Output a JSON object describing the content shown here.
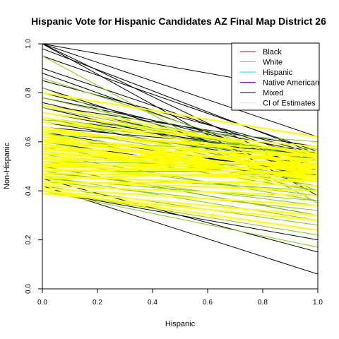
{
  "chart_data": {
    "type": "line",
    "title": "Hispanic Vote for Hispanic Candidates AZ Final Map District 26",
    "xlabel": "Hispanic",
    "ylabel": "Non-Hispanic",
    "xlim": [
      0,
      1
    ],
    "ylim": [
      0,
      1
    ],
    "x_ticks": [
      "0.0",
      "0.2",
      "0.4",
      "0.6",
      "0.8",
      "1.0"
    ],
    "y_ticks": [
      "0.0",
      "0.2",
      "0.4",
      "0.6",
      "0.8",
      "1.0"
    ],
    "grid": false,
    "legend_position": "top-right",
    "legend": [
      {
        "name": "Black",
        "color": "#cc0000"
      },
      {
        "name": "White",
        "color": "#7ccd00"
      },
      {
        "name": "Hispanic",
        "color": "#00e5e5"
      },
      {
        "name": "Native American",
        "color": "#7a00cc"
      },
      {
        "name": "Mixed",
        "color": "#000000"
      },
      {
        "name": "CI of Estimates",
        "color": "#ffff00"
      }
    ],
    "tomography_lines": {
      "Mixed": [
        [
          0.82,
          0.46
        ],
        [
          0.8,
          0.52
        ],
        [
          0.7,
          0.46
        ],
        [
          0.62,
          0.52
        ],
        [
          0.6,
          0.44
        ],
        [
          0.66,
          0.56
        ],
        [
          0.75,
          0.58
        ],
        [
          0.68,
          0.5
        ],
        [
          0.64,
          0.46
        ],
        [
          0.72,
          0.52
        ],
        [
          0.76,
          0.5
        ],
        [
          0.74,
          0.48
        ],
        [
          0.78,
          0.55
        ],
        [
          0.7,
          0.54
        ],
        [
          0.85,
          0.55
        ],
        [
          0.63,
          0.47
        ],
        [
          0.64,
          0.55
        ],
        [
          0.66,
          0.5
        ],
        [
          1.0,
          0.46
        ],
        [
          1.0,
          0.38
        ],
        [
          1.0,
          0.62
        ],
        [
          0.98,
          0.55
        ],
        [
          0.9,
          0.52
        ],
        [
          0.42,
          0.06
        ],
        [
          0.4,
          0.2
        ],
        [
          0.45,
          0.15
        ],
        [
          0.5,
          0.3
        ],
        [
          1.0,
          0.8
        ],
        [
          0.95,
          0.56
        ],
        [
          0.88,
          0.48
        ]
      ],
      "White": [
        [
          0.95,
          0.35
        ],
        [
          0.86,
          0.5
        ],
        [
          0.82,
          0.4
        ],
        [
          0.78,
          0.52
        ],
        [
          0.74,
          0.53
        ],
        [
          0.72,
          0.54
        ],
        [
          0.7,
          0.46
        ],
        [
          0.68,
          0.55
        ],
        [
          0.66,
          0.47
        ],
        [
          0.64,
          0.4
        ],
        [
          0.62,
          0.45
        ],
        [
          0.6,
          0.42
        ],
        [
          0.6,
          0.5
        ],
        [
          0.58,
          0.4
        ],
        [
          0.56,
          0.44
        ],
        [
          0.55,
          0.36
        ],
        [
          0.54,
          0.48
        ],
        [
          0.52,
          0.38
        ],
        [
          0.5,
          0.3
        ],
        [
          0.48,
          0.34
        ],
        [
          0.47,
          0.4
        ],
        [
          0.46,
          0.28
        ],
        [
          0.45,
          0.36
        ],
        [
          0.44,
          0.32
        ],
        [
          0.42,
          0.26
        ],
        [
          0.4,
          0.22
        ],
        [
          0.4,
          0.17
        ],
        [
          0.58,
          0.52
        ],
        [
          0.6,
          0.56
        ],
        [
          0.63,
          0.57
        ],
        [
          0.65,
          0.53
        ],
        [
          0.69,
          0.6
        ],
        [
          0.8,
          0.62
        ],
        [
          0.48,
          0.48
        ],
        [
          0.52,
          0.5
        ]
      ],
      "CI of Estimates": [
        [
          0.8,
          0.62
        ],
        [
          0.72,
          0.55
        ],
        [
          0.7,
          0.52
        ],
        [
          0.68,
          0.58
        ],
        [
          0.66,
          0.5
        ],
        [
          0.65,
          0.54
        ],
        [
          0.64,
          0.56
        ],
        [
          0.63,
          0.48
        ],
        [
          0.62,
          0.52
        ],
        [
          0.61,
          0.47
        ],
        [
          0.6,
          0.5
        ],
        [
          0.6,
          0.54
        ],
        [
          0.59,
          0.45
        ],
        [
          0.58,
          0.52
        ],
        [
          0.57,
          0.49
        ],
        [
          0.57,
          0.55
        ],
        [
          0.56,
          0.46
        ],
        [
          0.55,
          0.5
        ],
        [
          0.55,
          0.53
        ],
        [
          0.54,
          0.48
        ],
        [
          0.53,
          0.51
        ],
        [
          0.52,
          0.46
        ],
        [
          0.52,
          0.55
        ],
        [
          0.51,
          0.49
        ],
        [
          0.5,
          0.52
        ],
        [
          0.5,
          0.47
        ],
        [
          0.49,
          0.44
        ],
        [
          0.48,
          0.5
        ],
        [
          0.47,
          0.46
        ],
        [
          0.46,
          0.42
        ],
        [
          0.45,
          0.48
        ],
        [
          0.44,
          0.4
        ],
        [
          0.43,
          0.44
        ],
        [
          0.42,
          0.38
        ],
        [
          0.41,
          0.34
        ],
        [
          0.4,
          0.3
        ],
        [
          0.4,
          0.24
        ],
        [
          0.39,
          0.28
        ],
        [
          0.62,
          0.44
        ],
        [
          0.75,
          0.54
        ]
      ]
    }
  }
}
